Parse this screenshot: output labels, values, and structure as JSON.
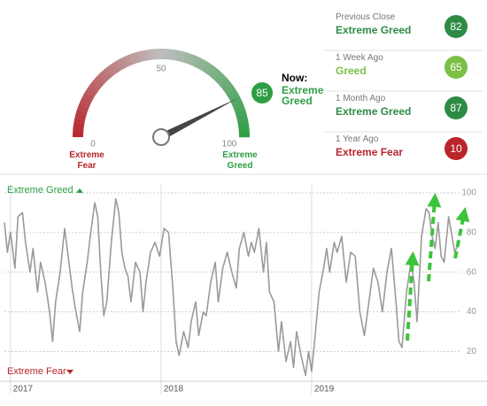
{
  "chart_data": [
    {
      "type": "gauge",
      "value": 85,
      "range": [
        0,
        100
      ],
      "ticks": [
        0,
        50,
        100
      ],
      "now_label": "Now:",
      "status": "Extreme Greed",
      "color": "#2e9e44",
      "min_label": "Extreme Fear",
      "max_label": "Extreme Greed",
      "min_color": "#b8252b",
      "max_color": "#2e9e44",
      "comparisons": [
        {
          "label": "Previous Close",
          "status": "Extreme Greed",
          "value": 82,
          "color": "#2e8b45"
        },
        {
          "label": "1 Week Ago",
          "status": "Greed",
          "value": 65,
          "color": "#7bbf47"
        },
        {
          "label": "1 Month Ago",
          "status": "Extreme Greed",
          "value": 87,
          "color": "#2e8b45"
        },
        {
          "label": "1 Year Ago",
          "status": "Extreme Fear",
          "value": 10,
          "color": "#b8252b"
        }
      ]
    },
    {
      "type": "line",
      "color": "#9a9a9a",
      "top_label": "Extreme Greed",
      "top_color": "#2e9e44",
      "bottom_label": "Extreme Fear",
      "bottom_color": "#b8252b",
      "x": [
        2016.96,
        2016.98,
        2017.0,
        2017.03,
        2017.05,
        2017.08,
        2017.1,
        2017.13,
        2017.15,
        2017.18,
        2017.2,
        2017.23,
        2017.26,
        2017.28,
        2017.3,
        2017.33,
        2017.36,
        2017.38,
        2017.41,
        2017.43,
        2017.46,
        2017.48,
        2017.51,
        2017.53,
        2017.56,
        2017.58,
        2017.6,
        2017.62,
        2017.64,
        2017.67,
        2017.7,
        2017.72,
        2017.74,
        2017.76,
        2017.78,
        2017.8,
        2017.83,
        2017.86,
        2017.88,
        2017.9,
        2017.93,
        2017.96,
        2017.99,
        2018.02,
        2018.05,
        2018.08,
        2018.1,
        2018.12,
        2018.15,
        2018.18,
        2018.2,
        2018.23,
        2018.25,
        2018.28,
        2018.3,
        2018.33,
        2018.36,
        2018.38,
        2018.41,
        2018.44,
        2018.47,
        2018.5,
        2018.52,
        2018.55,
        2018.58,
        2018.6,
        2018.62,
        2018.65,
        2018.68,
        2018.7,
        2018.72,
        2018.75,
        2018.78,
        2018.8,
        2018.83,
        2018.86,
        2018.88,
        2018.9,
        2018.93,
        2018.96,
        2018.98,
        2019.0,
        2019.02,
        2019.05,
        2019.08,
        2019.1,
        2019.12,
        2019.15,
        2019.17,
        2019.2,
        2019.23,
        2019.26,
        2019.29,
        2019.32,
        2019.35,
        2019.38,
        2019.41,
        2019.44,
        2019.47,
        2019.5,
        2019.53,
        2019.56,
        2019.58,
        2019.6,
        2019.63,
        2019.66,
        2019.68,
        2019.7,
        2019.73,
        2019.76,
        2019.78,
        2019.8,
        2019.82,
        2019.84,
        2019.86,
        2019.88,
        2019.91,
        2019.95,
        2019.98
      ],
      "values": [
        85,
        70,
        80,
        62,
        88,
        90,
        75,
        60,
        72,
        50,
        65,
        55,
        40,
        25,
        45,
        60,
        82,
        70,
        52,
        42,
        30,
        50,
        65,
        78,
        95,
        88,
        60,
        38,
        45,
        75,
        97,
        90,
        70,
        62,
        58,
        45,
        65,
        60,
        40,
        55,
        70,
        75,
        68,
        82,
        80,
        50,
        25,
        18,
        30,
        22,
        35,
        45,
        28,
        40,
        38,
        55,
        65,
        45,
        62,
        70,
        60,
        52,
        72,
        80,
        68,
        75,
        70,
        82,
        60,
        75,
        50,
        45,
        20,
        35,
        15,
        25,
        12,
        30,
        18,
        8,
        20,
        10,
        25,
        50,
        62,
        72,
        60,
        75,
        70,
        78,
        55,
        70,
        68,
        40,
        28,
        45,
        62,
        55,
        40,
        60,
        72,
        45,
        25,
        22,
        50,
        65,
        55,
        35,
        78,
        92,
        90,
        78,
        72,
        85,
        68,
        65,
        88,
        70,
        75
      ],
      "xlim": [
        2016.96,
        2020.1
      ],
      "xticks": [
        2017,
        2018,
        2019
      ],
      "ylim": [
        5,
        104
      ],
      "yticks": [
        20,
        40,
        60,
        80,
        100
      ],
      "grid": true
    }
  ]
}
